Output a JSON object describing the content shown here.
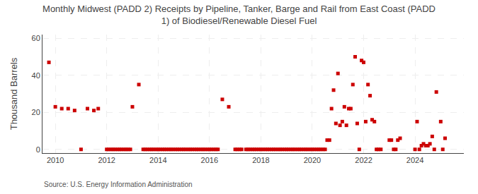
{
  "chart_data": {
    "type": "scatter",
    "title": "Monthly Midwest (PADD 2) Receipts by Pipeline, Tanker, Barge and Rail from East Coast (PADD\n1) of Biodiesel/Renewable Diesel Fuel",
    "ylabel": "Thousand Barrels",
    "annotations": [
      "Source: U.S. Energy Information Administration"
    ],
    "color": "#cc0000",
    "marker": "square",
    "grid": true,
    "xlim": [
      2009.5,
      2025.9
    ],
    "ylim": [
      -2,
      62
    ],
    "xticks": [
      2010,
      2012,
      2014,
      2016,
      2018,
      2020,
      2022,
      2024
    ],
    "yticks": [
      0,
      20,
      40,
      60
    ],
    "x": [
      2009.75,
      2010.0,
      2010.25,
      2010.5,
      2010.75,
      2011.0,
      2011.25,
      2011.5,
      2011.67,
      2013.0,
      2013.25,
      2016.5,
      2016.75,
      2020.58,
      2020.67,
      2020.75,
      2020.83,
      2020.92,
      2021.0,
      2021.08,
      2021.17,
      2021.25,
      2021.33,
      2021.42,
      2021.5,
      2021.58,
      2021.67,
      2021.75,
      2021.83,
      2021.92,
      2022.0,
      2022.08,
      2022.17,
      2022.25,
      2022.33,
      2022.42,
      2022.5,
      2022.58,
      2022.67,
      2023.0,
      2023.08,
      2023.17,
      2023.25,
      2023.33,
      2023.42,
      2024.0,
      2024.08,
      2024.17,
      2024.25,
      2024.33,
      2024.42,
      2024.5,
      2024.58,
      2024.67,
      2024.75,
      2024.83,
      2025.0,
      2025.08,
      2025.17,
      2012.0,
      2012.08,
      2012.17,
      2012.25,
      2012.33,
      2012.42,
      2012.5,
      2012.58,
      2012.67,
      2012.75,
      2012.83,
      2012.92,
      2013.42,
      2013.5,
      2013.58,
      2013.67,
      2013.75,
      2013.83,
      2013.92,
      2014.0,
      2014.08,
      2014.17,
      2014.25,
      2014.33,
      2014.42,
      2014.5,
      2014.58,
      2014.67,
      2014.75,
      2014.83,
      2014.92,
      2015.0,
      2015.08,
      2015.17,
      2015.25,
      2015.33,
      2015.42,
      2015.5,
      2015.58,
      2015.67,
      2015.75,
      2015.83,
      2015.92,
      2016.0,
      2016.08,
      2016.17,
      2016.25,
      2016.33,
      2017.0,
      2017.08,
      2017.17,
      2017.25,
      2017.42,
      2017.5,
      2017.58,
      2017.67,
      2017.75,
      2017.83,
      2017.92,
      2018.0,
      2018.08,
      2018.17,
      2018.25,
      2018.33,
      2018.42,
      2018.5,
      2018.58,
      2018.67,
      2018.75,
      2018.83,
      2018.92,
      2019.0,
      2019.08,
      2019.17,
      2019.25,
      2019.33,
      2019.42,
      2019.5,
      2019.58,
      2019.67,
      2019.75,
      2019.83,
      2019.92,
      2020.0,
      2020.08,
      2020.17,
      2020.25,
      2020.33,
      2020.42,
      2020.5
    ],
    "values": [
      47,
      23,
      22,
      22,
      21,
      0,
      22,
      21,
      22,
      23,
      35,
      27,
      23,
      5,
      5,
      22,
      32,
      14,
      41,
      13,
      15,
      23,
      13,
      22,
      22,
      35,
      50,
      14,
      0,
      48,
      47,
      15,
      35,
      29,
      16,
      15,
      0,
      0,
      0,
      5,
      5,
      0,
      0,
      5,
      6,
      0,
      15,
      0,
      2,
      3,
      2,
      2,
      3,
      7,
      0,
      31,
      15,
      0,
      6,
      0,
      0,
      0,
      0,
      0,
      0,
      0,
      0,
      0,
      0,
      0,
      0,
      0,
      0,
      0,
      0,
      0,
      0,
      0,
      0,
      0,
      0,
      0,
      0,
      0,
      0,
      0,
      0,
      0,
      0,
      0,
      0,
      0,
      0,
      0,
      0,
      0,
      0,
      0,
      0,
      0,
      0,
      0,
      0,
      0,
      0,
      0,
      0,
      0,
      0,
      0,
      0,
      0,
      0,
      0,
      0,
      0,
      0,
      0,
      0,
      0,
      0,
      0,
      0,
      0,
      0,
      0,
      0,
      0,
      0,
      0,
      0,
      0,
      0,
      0,
      0,
      0,
      0,
      0,
      0,
      0,
      0,
      0,
      0,
      0,
      0,
      0,
      0,
      0,
      0
    ]
  }
}
